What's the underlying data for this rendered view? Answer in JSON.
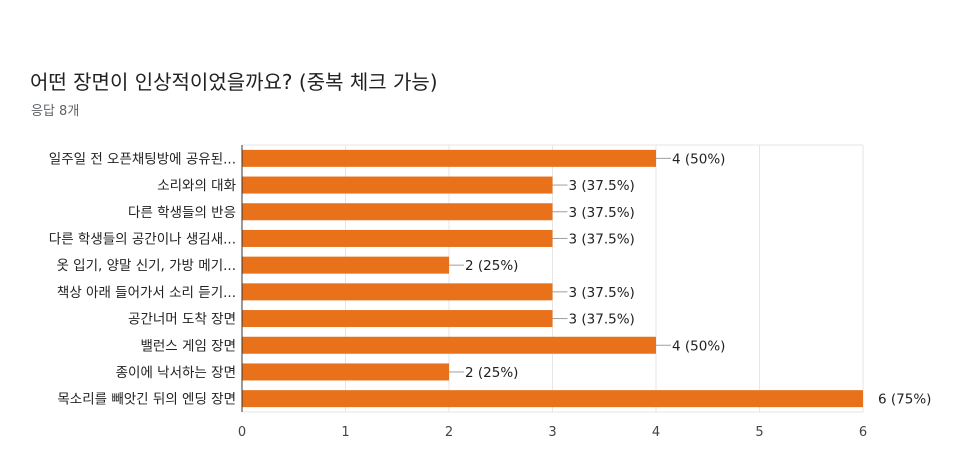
{
  "header": {
    "title": "어떤 장면이 인상적이었을까요? (중복 체크 가능)",
    "subtitle": "응답 8개"
  },
  "chart_data": {
    "type": "bar",
    "orientation": "horizontal",
    "categories": [
      "일주일 전 오픈채팅방에 공유된...",
      "소리와의 대화",
      "다른 학생들의 반응",
      "다른 학생들의 공간이나 생김새...",
      "옷 입기, 양말 신기, 가방 메기...",
      "책상 아래 들어가서 소리 듣기...",
      "공간너머 도착 장면",
      "밸런스 게임 장면",
      "종이에 낙서하는 장면",
      "목소리를 빼앗긴 뒤의 엔딩 장면"
    ],
    "values": [
      4,
      3,
      3,
      3,
      2,
      3,
      3,
      4,
      2,
      6
    ],
    "data_labels": [
      "4 (50%)",
      "3 (37.5%)",
      "3 (37.5%)",
      "3 (37.5%)",
      "2 (25%)",
      "3 (37.5%)",
      "3 (37.5%)",
      "4 (50%)",
      "2 (25%)",
      "6 (75%)"
    ],
    "xlim": [
      0,
      6
    ],
    "x_ticks": [
      "0",
      "1",
      "2",
      "3",
      "4",
      "5",
      "6"
    ],
    "grid": true,
    "bar_color": "#e8711a"
  }
}
